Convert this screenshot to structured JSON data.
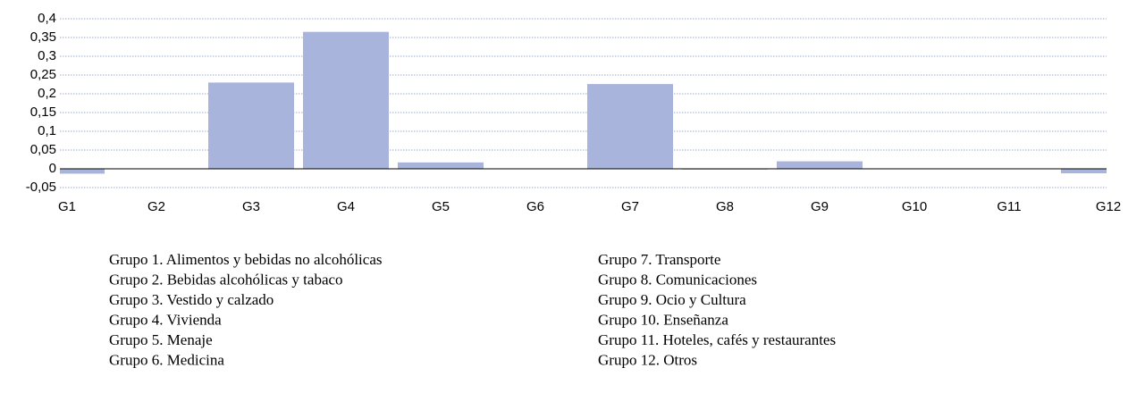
{
  "chart_data": {
    "type": "bar",
    "categories": [
      "G1",
      "G2",
      "G3",
      "G4",
      "G5",
      "G6",
      "G7",
      "G8",
      "G9",
      "G10",
      "G11",
      "G12"
    ],
    "values": [
      -0.013,
      0.001,
      0.23,
      0.365,
      0.017,
      0.001,
      0.226,
      -0.002,
      0.02,
      0,
      0,
      -0.012
    ],
    "color": "#a9b4dc",
    "ylim": [
      -0.05,
      0.4
    ],
    "yticks": [
      {
        "value": -0.05,
        "label": "-0,05"
      },
      0,
      {
        "value": 0.05,
        "label": "0,05"
      },
      {
        "value": 0.1,
        "label": "0,1"
      },
      {
        "value": 0.15,
        "label": "0,15"
      },
      {
        "value": 0.2,
        "label": "0,2"
      },
      {
        "value": 0.25,
        "label": "0,25"
      },
      {
        "value": 0.3,
        "label": "0,3"
      },
      {
        "value": 0.35,
        "label": "0,35"
      },
      {
        "value": 0.4,
        "label": "0,4"
      }
    ],
    "grid": true,
    "legend_items": [
      "Grupo 1. Alimentos y bebidas no alcohólicas",
      "Grupo 2. Bebidas alcohólicas y tabaco",
      "Grupo 3. Vestido y calzado",
      "Grupo 4. Vivienda",
      "Grupo 5. Menaje",
      "Grupo 6. Medicina",
      "Grupo 7. Transporte",
      "Grupo 8. Comunicaciones",
      "Grupo 9. Ocio y Cultura",
      "Grupo 10. Enseñanza",
      "Grupo 11. Hoteles, cafés y restaurantes",
      "Grupo 12. Otros"
    ]
  }
}
